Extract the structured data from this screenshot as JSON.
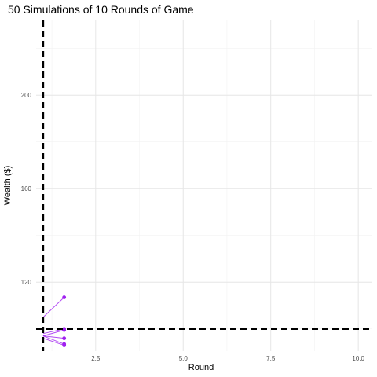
{
  "chart_data": {
    "type": "line",
    "title": "50 Simulations of 10 Rounds of Game",
    "xlabel": "Round",
    "ylabel": "Wealth ($)",
    "xlim": [
      0.8,
      10.4
    ],
    "ylim": [
      90.5,
      232
    ],
    "x_ticks": [
      2.5,
      5.0,
      7.5,
      10.0
    ],
    "x_tick_labels": [
      "2.5",
      "5.0",
      "7.5",
      "10.0"
    ],
    "y_ticks": [
      120,
      160,
      200
    ],
    "y_tick_labels": [
      "120",
      "160",
      "200"
    ],
    "x_minor_ticks": [
      1.25,
      3.75,
      6.25,
      8.75
    ],
    "y_minor_ticks": [
      100,
      140,
      180,
      220
    ],
    "grid": true,
    "reference_lines": [
      {
        "orientation": "vertical",
        "value": 1,
        "style": "dashed",
        "color": "#000000"
      },
      {
        "orientation": "horizontal",
        "value": 100,
        "style": "dashed",
        "color": "#000000"
      }
    ],
    "series_color": "#a020f0",
    "series": [
      {
        "x": [
          1,
          1.6
        ],
        "y": [
          105,
          113.5
        ]
      },
      {
        "x": [
          1,
          1.6
        ],
        "y": [
          98,
          100
        ]
      },
      {
        "x": [
          1,
          1.6
        ],
        "y": [
          97,
          99.5
        ]
      },
      {
        "x": [
          1,
          1.6
        ],
        "y": [
          97,
          96
        ]
      },
      {
        "x": [
          1,
          1.6
        ],
        "y": [
          97,
          93.5
        ]
      },
      {
        "x": [
          1,
          1.6
        ],
        "y": [
          96,
          93
        ]
      }
    ]
  }
}
